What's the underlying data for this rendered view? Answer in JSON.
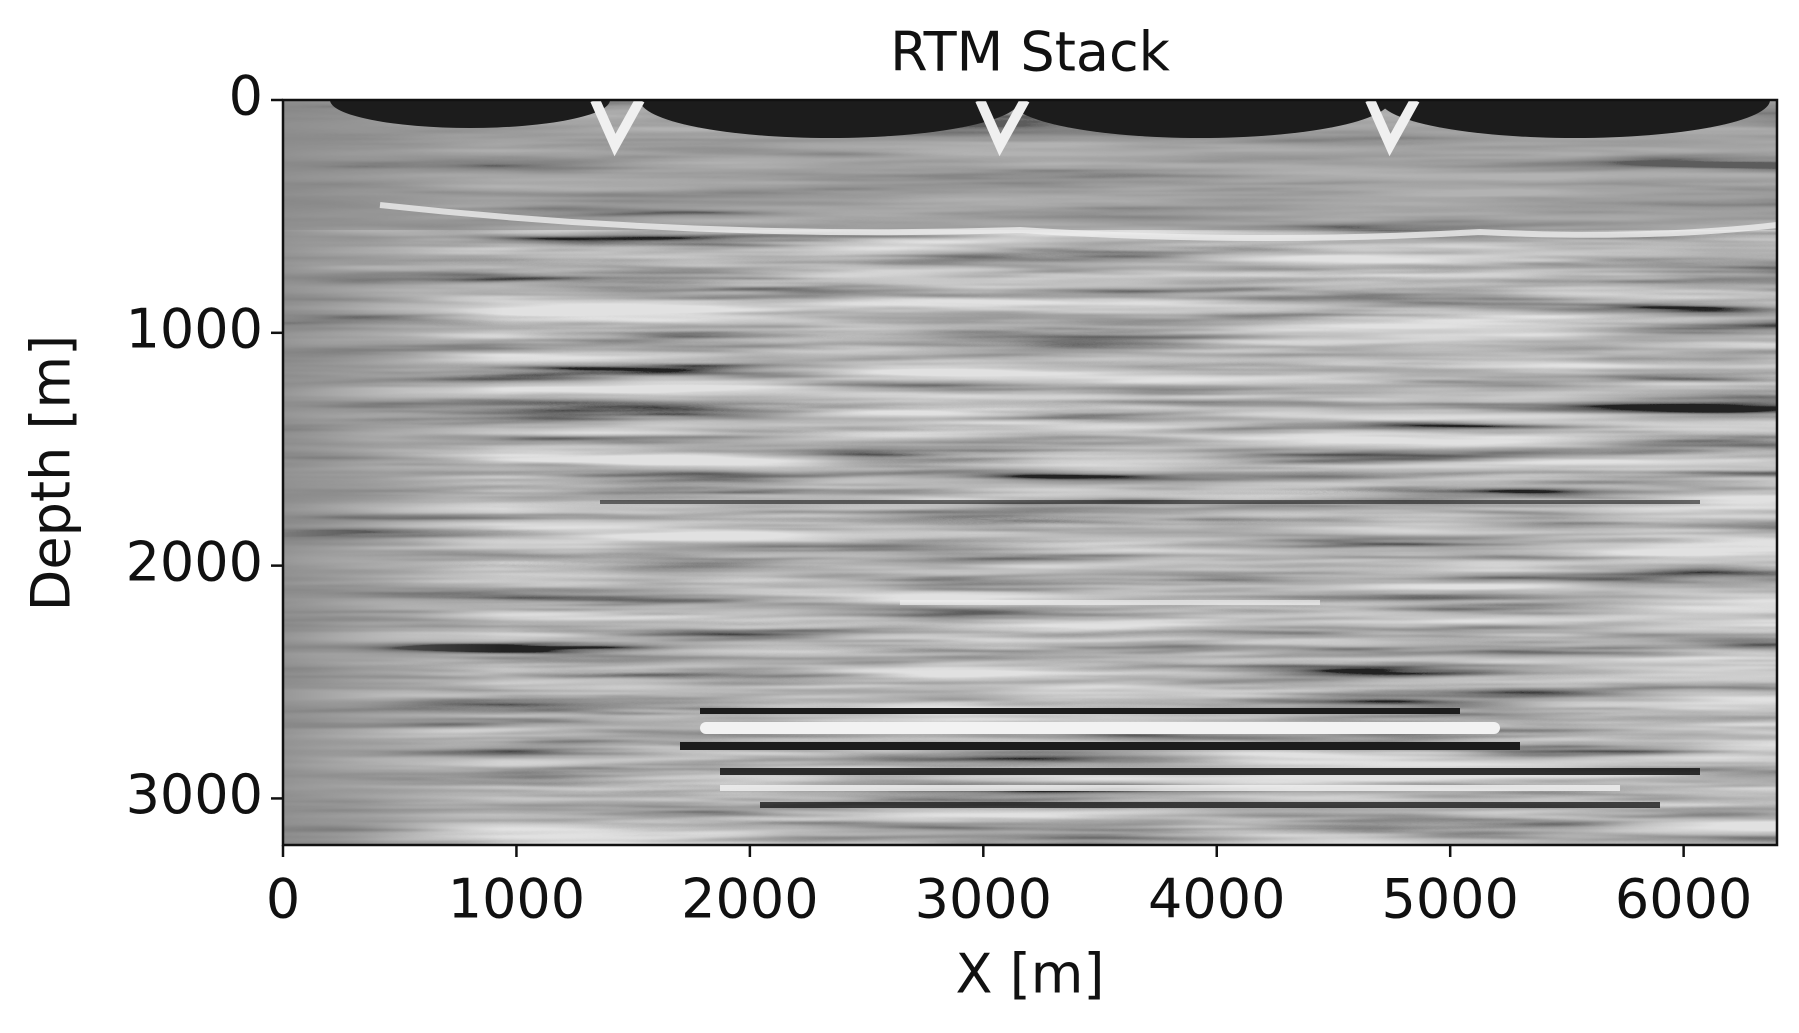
{
  "chart_data": {
    "type": "image",
    "title": "RTM Stack",
    "xlabel": "X [m]",
    "ylabel": "Depth [m]",
    "xlim": [
      0,
      6400
    ],
    "ylim": [
      3200,
      0
    ],
    "xticks": [
      0,
      1000,
      2000,
      3000,
      4000,
      5000,
      6000
    ],
    "yticks": [
      0,
      1000,
      2000,
      3000
    ]
  }
}
